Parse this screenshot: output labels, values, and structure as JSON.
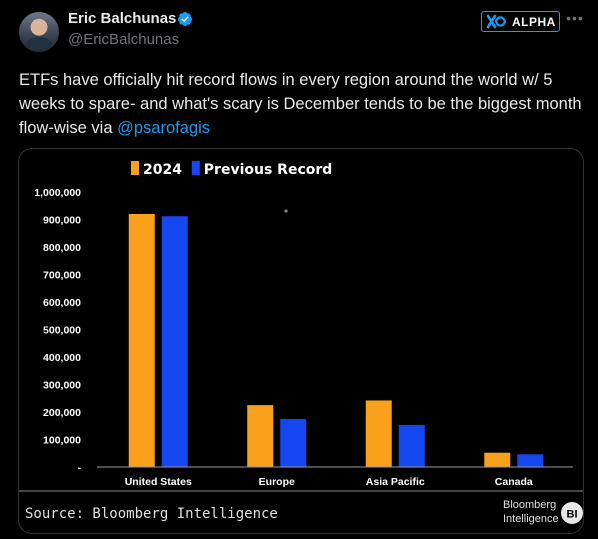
{
  "tweet": {
    "display_name": "Eric Balchunas",
    "handle": "@EricBalchunas",
    "badge_label": "ALPHA",
    "more_icon": "more-horizontal-icon",
    "text_main": "ETFs have officially hit record flows in every region around the world w/ 5 weeks to spare- and what's scary is December tends to be the biggest month flow-wise via ",
    "mention": "@psarofagis"
  },
  "colors": {
    "accent": "#1d9bf0",
    "series_2024": "#f9a11b",
    "series_previous": "#1447ef"
  },
  "chart_data": {
    "type": "bar",
    "categories": [
      "United States",
      "Europe",
      "Asia Pacific",
      "Canada"
    ],
    "series": [
      {
        "name": "2024",
        "values": [
          920000,
          225000,
          242000,
          52000
        ]
      },
      {
        "name": "Previous Record",
        "values": [
          912000,
          175000,
          153000,
          46000
        ]
      }
    ],
    "yticks": [
      {
        "value": 0,
        "label": "-"
      },
      {
        "value": 100000,
        "label": "100,000"
      },
      {
        "value": 200000,
        "label": "200,000"
      },
      {
        "value": 300000,
        "label": "300,000"
      },
      {
        "value": 400000,
        "label": "400,000"
      },
      {
        "value": 500000,
        "label": "500,000"
      },
      {
        "value": 600000,
        "label": "600,000"
      },
      {
        "value": 700000,
        "label": "700,000"
      },
      {
        "value": 800000,
        "label": "800,000"
      },
      {
        "value": 900000,
        "label": "900,000"
      },
      {
        "value": 1000000,
        "label": "1,000,000"
      }
    ],
    "ylim": [
      0,
      1000000
    ],
    "grid": false,
    "legend_position": "top-left",
    "source": "Source: Bloomberg Intelligence",
    "brand_line1": "Bloomberg",
    "brand_line2": "Intelligence",
    "brand_mark": "BI"
  }
}
